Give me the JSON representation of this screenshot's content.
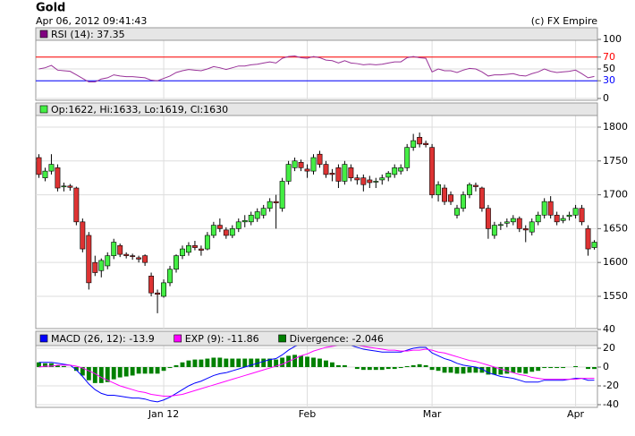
{
  "header": {
    "title": "Gold",
    "timestamp": "Apr 06, 2012 09:41:43",
    "copyright": "(c) FX Empire"
  },
  "chart_data": [
    {
      "type": "line",
      "ylim": [
        0,
        100
      ],
      "yticks": [
        0,
        30,
        50,
        70,
        100
      ],
      "grid": true,
      "hlines": [
        {
          "value": 70,
          "color": "#ff0000"
        },
        {
          "value": 30,
          "color": "#0000ff"
        }
      ],
      "series": [
        {
          "name": "RSI (14): 37.35",
          "color": "#993399",
          "swatch": "#800080",
          "values": [
            50,
            52,
            56,
            48,
            47,
            46,
            40,
            34,
            28,
            28,
            33,
            35,
            40,
            38,
            37,
            37,
            36,
            35,
            31,
            30,
            34,
            38,
            44,
            47,
            49,
            48,
            47,
            50,
            54,
            52,
            49,
            52,
            55,
            55,
            57,
            58,
            60,
            62,
            60,
            68,
            71,
            72,
            69,
            68,
            71,
            69,
            65,
            64,
            60,
            64,
            60,
            59,
            57,
            58,
            57,
            58,
            60,
            62,
            62,
            69,
            71,
            69,
            68,
            45,
            50,
            47,
            47,
            44,
            48,
            51,
            50,
            45,
            38,
            40,
            40,
            41,
            42,
            39,
            38,
            42,
            45,
            50,
            46,
            44,
            45,
            46,
            48,
            42,
            35,
            37.35
          ]
        }
      ]
    },
    {
      "type": "candlestick",
      "ylim": [
        1505,
        1830
      ],
      "yticks": [
        1550,
        1600,
        1650,
        1700,
        1750,
        1800
      ],
      "grid": true,
      "legend": "Op:1622, Hi:1633, Lo:1619, Cl:1630",
      "up_color": "#44ee44",
      "down_color": "#dd3333",
      "categories": [
        null,
        null,
        null,
        null,
        null,
        null,
        null,
        null,
        null,
        null,
        null,
        null,
        null,
        null,
        null,
        null,
        null,
        null,
        null,
        null,
        "Jan 12",
        null,
        null,
        null,
        null,
        null,
        null,
        null,
        null,
        null,
        null,
        null,
        null,
        null,
        null,
        null,
        null,
        null,
        null,
        null,
        null,
        null,
        null,
        "Feb",
        null,
        null,
        null,
        null,
        null,
        null,
        null,
        null,
        null,
        null,
        null,
        null,
        null,
        null,
        null,
        null,
        null,
        null,
        null,
        "Mar",
        null,
        null,
        null,
        null,
        null,
        null,
        null,
        null,
        null,
        null,
        null,
        null,
        null,
        null,
        null,
        null,
        null,
        null,
        null,
        null,
        null,
        null,
        "Apr",
        null,
        null,
        null
      ],
      "open": [
        1755,
        1725,
        1735,
        1740,
        1712,
        1713,
        1710,
        1660,
        1640,
        1600,
        1588,
        1595,
        1610,
        1625,
        1612,
        1610,
        1607,
        1610,
        1580,
        1555,
        1550,
        1570,
        1590,
        1610,
        1615,
        1625,
        1620,
        1620,
        1640,
        1655,
        1648,
        1640,
        1650,
        1660,
        1660,
        1665,
        1670,
        1680,
        1690,
        1680,
        1720,
        1740,
        1748,
        1738,
        1735,
        1760,
        1745,
        1732,
        1740,
        1720,
        1740,
        1725,
        1725,
        1722,
        1720,
        1722,
        1726,
        1730,
        1735,
        1740,
        1770,
        1785,
        1776,
        1770,
        1700,
        1710,
        1700,
        1670,
        1680,
        1700,
        1714,
        1710,
        1680,
        1640,
        1655,
        1658,
        1660,
        1665,
        1650,
        1645,
        1660,
        1670,
        1690,
        1670,
        1662,
        1668,
        1670,
        1680,
        1650,
        1622
      ],
      "high": [
        1760,
        1740,
        1760,
        1745,
        1718,
        1716,
        1712,
        1665,
        1645,
        1610,
        1606,
        1615,
        1635,
        1628,
        1615,
        1613,
        1610,
        1612,
        1585,
        1560,
        1575,
        1595,
        1612,
        1625,
        1630,
        1632,
        1625,
        1645,
        1660,
        1665,
        1652,
        1655,
        1665,
        1670,
        1675,
        1680,
        1685,
        1695,
        1700,
        1725,
        1750,
        1755,
        1752,
        1745,
        1760,
        1765,
        1750,
        1738,
        1745,
        1750,
        1745,
        1730,
        1730,
        1728,
        1725,
        1730,
        1735,
        1745,
        1745,
        1775,
        1790,
        1792,
        1780,
        1775,
        1720,
        1715,
        1705,
        1685,
        1705,
        1718,
        1718,
        1712,
        1685,
        1660,
        1660,
        1665,
        1670,
        1668,
        1655,
        1665,
        1675,
        1695,
        1698,
        1675,
        1670,
        1675,
        1685,
        1685,
        1655,
        1633
      ],
      "low": [
        1725,
        1720,
        1730,
        1705,
        1705,
        1706,
        1655,
        1615,
        1560,
        1580,
        1578,
        1590,
        1605,
        1608,
        1606,
        1604,
        1600,
        1595,
        1550,
        1525,
        1548,
        1565,
        1585,
        1605,
        1610,
        1618,
        1610,
        1618,
        1636,
        1645,
        1635,
        1636,
        1645,
        1652,
        1655,
        1660,
        1665,
        1675,
        1650,
        1675,
        1715,
        1735,
        1735,
        1725,
        1730,
        1740,
        1725,
        1720,
        1710,
        1715,
        1720,
        1715,
        1705,
        1710,
        1710,
        1715,
        1720,
        1725,
        1730,
        1735,
        1765,
        1770,
        1770,
        1695,
        1690,
        1685,
        1685,
        1665,
        1675,
        1695,
        1705,
        1675,
        1635,
        1635,
        1648,
        1652,
        1655,
        1645,
        1630,
        1640,
        1655,
        1665,
        1665,
        1655,
        1658,
        1662,
        1665,
        1655,
        1610,
        1619
      ],
      "close": [
        1730,
        1735,
        1745,
        1710,
        1713,
        1711,
        1660,
        1620,
        1570,
        1585,
        1603,
        1610,
        1630,
        1612,
        1610,
        1609,
        1605,
        1600,
        1555,
        1553,
        1570,
        1590,
        1610,
        1620,
        1625,
        1622,
        1618,
        1640,
        1655,
        1650,
        1640,
        1650,
        1660,
        1662,
        1670,
        1675,
        1680,
        1690,
        1688,
        1720,
        1745,
        1750,
        1740,
        1735,
        1755,
        1745,
        1730,
        1730,
        1720,
        1745,
        1725,
        1722,
        1715,
        1718,
        1720,
        1725,
        1732,
        1740,
        1740,
        1770,
        1780,
        1775,
        1774,
        1700,
        1715,
        1690,
        1690,
        1680,
        1700,
        1715,
        1712,
        1680,
        1650,
        1655,
        1656,
        1660,
        1665,
        1650,
        1648,
        1660,
        1670,
        1690,
        1670,
        1660,
        1665,
        1670,
        1680,
        1660,
        1620,
        1630
      ]
    },
    {
      "type": "macd",
      "ylim": [
        -40,
        40
      ],
      "yticks": [
        -40,
        -20,
        0,
        20,
        40
      ],
      "grid": true,
      "series": [
        {
          "name": "MACD (26, 12): -13.9",
          "kind": "line",
          "color": "#0000ff",
          "values": [
            5,
            5,
            5,
            4,
            3,
            2,
            -3,
            -10,
            -18,
            -24,
            -28,
            -30,
            -30,
            -31,
            -32,
            -33,
            -33,
            -34,
            -36,
            -37,
            -35,
            -32,
            -28,
            -24,
            -20,
            -17,
            -15,
            -12,
            -9,
            -7,
            -6,
            -4,
            -2,
            0,
            2,
            4,
            6,
            8,
            9,
            13,
            18,
            22,
            24,
            25,
            27,
            28,
            28,
            27,
            25,
            25,
            23,
            21,
            19,
            18,
            17,
            16,
            16,
            16,
            16,
            18,
            20,
            21,
            21,
            15,
            12,
            9,
            7,
            4,
            2,
            1,
            0,
            -2,
            -6,
            -8,
            -10,
            -11,
            -12,
            -14,
            -16,
            -16,
            -16,
            -14,
            -14,
            -14,
            -14,
            -13,
            -12,
            -12,
            -14,
            -13.9
          ]
        },
        {
          "name": "EXP (9): -11.86",
          "kind": "line",
          "color": "#ff00ff",
          "values": [
            0,
            1,
            1,
            2,
            2,
            2,
            1,
            -1,
            -4,
            -7,
            -11,
            -14,
            -17,
            -20,
            -22,
            -24,
            -26,
            -27,
            -29,
            -30,
            -31,
            -31,
            -30,
            -29,
            -27,
            -25,
            -23,
            -21,
            -19,
            -17,
            -15,
            -13,
            -11,
            -9,
            -7,
            -5,
            -3,
            -1,
            1,
            3,
            6,
            9,
            12,
            14,
            17,
            19,
            21,
            22,
            23,
            23,
            23,
            23,
            22,
            21,
            20,
            19,
            18,
            18,
            17,
            17,
            18,
            18,
            19,
            18,
            16,
            15,
            13,
            11,
            9,
            7,
            6,
            4,
            2,
            0,
            -2,
            -4,
            -6,
            -8,
            -9,
            -11,
            -12,
            -13,
            -13,
            -13,
            -13,
            -13,
            -13,
            -12,
            -12,
            -11.86
          ]
        },
        {
          "name": "Divergence: -2.046",
          "kind": "bar",
          "color": "#008000",
          "values": [
            5,
            4,
            4,
            2,
            1,
            0,
            -4,
            -9,
            -14,
            -17,
            -17,
            -16,
            -13,
            -11,
            -10,
            -9,
            -7,
            -7,
            -7,
            -7,
            -4,
            -1,
            2,
            5,
            7,
            8,
            8,
            9,
            10,
            10,
            9,
            9,
            9,
            9,
            9,
            9,
            9,
            9,
            8,
            10,
            12,
            13,
            12,
            11,
            10,
            9,
            7,
            5,
            2,
            2,
            0,
            -2,
            -3,
            -3,
            -3,
            -3,
            -2,
            -2,
            -1,
            1,
            2,
            3,
            2,
            -3,
            -4,
            -6,
            -6,
            -7,
            -7,
            -6,
            -6,
            -6,
            -8,
            -8,
            -8,
            -7,
            -6,
            -6,
            -7,
            -5,
            -4,
            -1,
            -1,
            -1,
            -1,
            0,
            1,
            0,
            -2,
            -2.046
          ]
        }
      ]
    }
  ]
}
